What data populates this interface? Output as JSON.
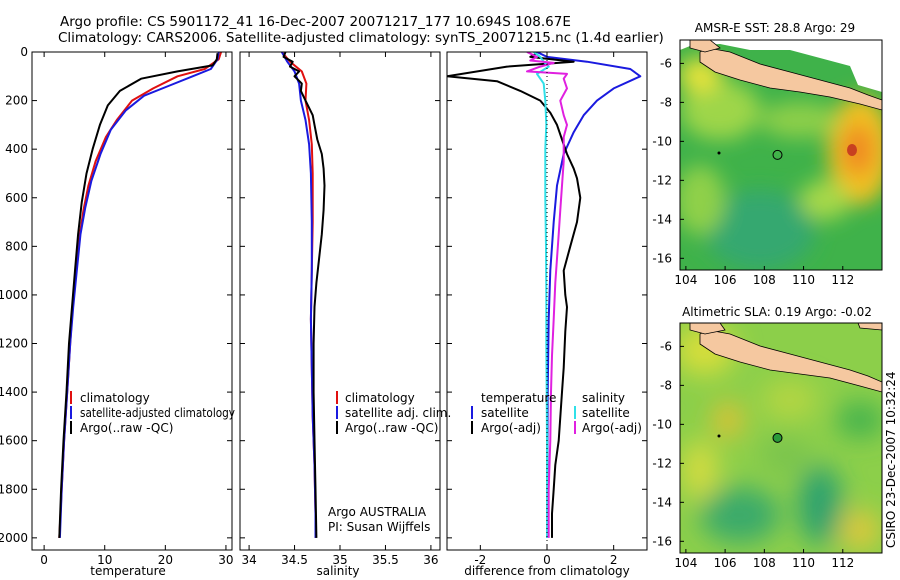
{
  "header": {
    "line1": "Argo profile: CS 5901172_41 16-Dec-2007 20071217_177 10.694S 108.67E",
    "line2": "Climatology: CARS2006. Satellite-adjusted climatology: synTS_20071215.nc (1.4d earlier)"
  },
  "footer_stamp": "CSIRO 23-Dec-2007 10:32:24",
  "colors": {
    "climatology": "#e01010",
    "satellite": "#1a1adf",
    "argo": "#000000",
    "sat_diff": "#30e0e8",
    "argo_diff_sal": "#e020e0",
    "land": "#f5c8a0"
  },
  "chart_data": [
    {
      "type": "line",
      "id": "temperature",
      "xlabel": "temperature",
      "ylabel": "",
      "xlim": [
        -2,
        31
      ],
      "ylim": [
        2050,
        0
      ],
      "y_reversed": true,
      "xticks": [
        0,
        10,
        20,
        30
      ],
      "xtick_labels": [
        "0",
        "10",
        "20",
        "30"
      ],
      "yticks": [
        0,
        200,
        400,
        600,
        800,
        1000,
        1200,
        1400,
        1600,
        1800,
        2000
      ],
      "ytick_labels": [
        "0",
        "200",
        "400",
        "600",
        "800",
        "1000",
        "1200",
        "1400",
        "1600",
        "1800",
        "2000"
      ],
      "legend": [
        "climatology",
        "satellite-adjusted climatology",
        "Argo(..raw -QC)"
      ],
      "series": [
        {
          "name": "climatology",
          "color": "#e01010",
          "points": [
            [
              29.2,
              0
            ],
            [
              28.8,
              30
            ],
            [
              26.5,
              70
            ],
            [
              22,
              100
            ],
            [
              18,
              150
            ],
            [
              14.5,
              200
            ],
            [
              12,
              280
            ],
            [
              10.2,
              350
            ],
            [
              8.5,
              450
            ],
            [
              7.3,
              550
            ],
            [
              6.5,
              650
            ],
            [
              5.9,
              750
            ],
            [
              5.3,
              900
            ],
            [
              4.7,
              1050
            ],
            [
              4.3,
              1200
            ],
            [
              3.8,
              1400
            ],
            [
              3.3,
              1600
            ],
            [
              2.9,
              1800
            ],
            [
              2.5,
              2000
            ]
          ]
        },
        {
          "name": "satellite-adjusted climatology",
          "color": "#1a1adf",
          "points": [
            [
              28.8,
              0
            ],
            [
              28.6,
              30
            ],
            [
              27.5,
              70
            ],
            [
              24.5,
              100
            ],
            [
              20.5,
              140
            ],
            [
              16.5,
              180
            ],
            [
              13.5,
              240
            ],
            [
              11,
              320
            ],
            [
              9.3,
              420
            ],
            [
              7.8,
              530
            ],
            [
              6.8,
              640
            ],
            [
              6,
              750
            ],
            [
              5.4,
              900
            ],
            [
              4.8,
              1050
            ],
            [
              4.3,
              1200
            ],
            [
              3.8,
              1400
            ],
            [
              3.3,
              1600
            ],
            [
              2.9,
              1800
            ],
            [
              2.6,
              2000
            ]
          ]
        },
        {
          "name": "Argo(..raw -QC)",
          "color": "#000000",
          "points": [
            [
              28.6,
              5
            ],
            [
              28.5,
              30
            ],
            [
              27.8,
              55
            ],
            [
              22,
              80
            ],
            [
              16,
              110
            ],
            [
              12.5,
              160
            ],
            [
              10.5,
              220
            ],
            [
              9.2,
              300
            ],
            [
              8,
              400
            ],
            [
              7,
              500
            ],
            [
              6.2,
              620
            ],
            [
              5.6,
              750
            ],
            [
              5.1,
              900
            ],
            [
              4.6,
              1050
            ],
            [
              4.1,
              1200
            ],
            [
              3.7,
              1400
            ],
            [
              3.2,
              1600
            ],
            [
              2.8,
              1800
            ],
            [
              2.5,
              2000
            ]
          ]
        }
      ]
    },
    {
      "type": "line",
      "id": "salinity",
      "xlabel": "salinity",
      "ylabel": "",
      "xlim": [
        33.9,
        36.1
      ],
      "ylim": [
        2050,
        0
      ],
      "y_reversed": true,
      "xticks": [
        34,
        34.5,
        35,
        35.5,
        36
      ],
      "xtick_labels": [
        "34",
        "34.5",
        "35",
        "35.5",
        "36"
      ],
      "legend": [
        "climatology",
        "satellite adj. clim.",
        "Argo(..raw -QC)"
      ],
      "annotations": [
        "Argo AUSTRALIA",
        "PI: Susan Wijffels"
      ],
      "series": [
        {
          "name": "climatology",
          "color": "#e01010",
          "points": [
            [
              34.36,
              0
            ],
            [
              34.45,
              40
            ],
            [
              34.58,
              80
            ],
            [
              34.63,
              130
            ],
            [
              34.62,
              200
            ],
            [
              34.66,
              280
            ],
            [
              34.69,
              380
            ],
            [
              34.7,
              500
            ],
            [
              34.7,
              700
            ],
            [
              34.69,
              900
            ],
            [
              34.68,
              1100
            ],
            [
              34.69,
              1300
            ],
            [
              34.7,
              1500
            ],
            [
              34.72,
              1700
            ],
            [
              34.73,
              1900
            ],
            [
              34.73,
              2000
            ]
          ]
        },
        {
          "name": "satellite adj. clim.",
          "color": "#1a1adf",
          "points": [
            [
              34.36,
              0
            ],
            [
              34.42,
              40
            ],
            [
              34.5,
              80
            ],
            [
              34.55,
              130
            ],
            [
              34.57,
              200
            ],
            [
              34.62,
              280
            ],
            [
              34.66,
              380
            ],
            [
              34.68,
              500
            ],
            [
              34.69,
              700
            ],
            [
              34.69,
              900
            ],
            [
              34.68,
              1100
            ],
            [
              34.69,
              1300
            ],
            [
              34.7,
              1500
            ],
            [
              34.72,
              1700
            ],
            [
              34.73,
              1900
            ],
            [
              34.73,
              2000
            ]
          ]
        },
        {
          "name": "Argo(..raw -QC)",
          "color": "#000000",
          "points": [
            [
              34.4,
              0
            ],
            [
              34.38,
              20
            ],
            [
              34.48,
              40
            ],
            [
              34.45,
              60
            ],
            [
              34.55,
              80
            ],
            [
              34.5,
              100
            ],
            [
              34.58,
              130
            ],
            [
              34.57,
              160
            ],
            [
              34.62,
              200
            ],
            [
              34.7,
              260
            ],
            [
              34.72,
              300
            ],
            [
              34.75,
              360
            ],
            [
              34.8,
              420
            ],
            [
              34.82,
              480
            ],
            [
              34.83,
              550
            ],
            [
              34.82,
              650
            ],
            [
              34.8,
              750
            ],
            [
              34.77,
              850
            ],
            [
              34.74,
              950
            ],
            [
              34.72,
              1050
            ],
            [
              34.71,
              1200
            ],
            [
              34.71,
              1400
            ],
            [
              34.72,
              1600
            ],
            [
              34.73,
              1800
            ],
            [
              34.74,
              2000
            ]
          ]
        }
      ]
    },
    {
      "type": "line",
      "id": "difference",
      "xlabel": "difference from climatology",
      "ylabel": "",
      "xlim": [
        -3,
        3
      ],
      "ylim": [
        2050,
        0
      ],
      "y_reversed": true,
      "xticks": [
        -2,
        0,
        2
      ],
      "xtick_labels": [
        "-2",
        "0",
        "2"
      ],
      "legend": [
        "temperature",
        "satellite",
        "Argo(-adj)",
        "salinity",
        "satellite",
        "Argo(-adj)"
      ],
      "series": [
        {
          "name": "temperature satellite",
          "color": "#1a1adf",
          "points": [
            [
              -0.3,
              0
            ],
            [
              0,
              20
            ],
            [
              1.2,
              40
            ],
            [
              2.5,
              70
            ],
            [
              2.8,
              100
            ],
            [
              2,
              150
            ],
            [
              1.5,
              200
            ],
            [
              1.1,
              260
            ],
            [
              0.8,
              330
            ],
            [
              0.5,
              420
            ],
            [
              0.3,
              550
            ],
            [
              0.2,
              700
            ],
            [
              0.1,
              900
            ],
            [
              0.05,
              1100
            ],
            [
              0.02,
              1400
            ],
            [
              0.01,
              1700
            ],
            [
              0,
              2000
            ]
          ]
        },
        {
          "name": "temperature Argo(-adj)",
          "color": "#000000",
          "points": [
            [
              -0.3,
              5
            ],
            [
              -0.5,
              20
            ],
            [
              0.8,
              40
            ],
            [
              -1.2,
              60
            ],
            [
              -3,
              100
            ],
            [
              -1.5,
              120
            ],
            [
              -0.8,
              160
            ],
            [
              -0.2,
              200
            ],
            [
              0.1,
              250
            ],
            [
              0.3,
              300
            ],
            [
              0.45,
              360
            ],
            [
              0.6,
              420
            ],
            [
              0.8,
              480
            ],
            [
              0.9,
              520
            ],
            [
              1,
              600
            ],
            [
              0.9,
              700
            ],
            [
              0.7,
              800
            ],
            [
              0.5,
              900
            ],
            [
              0.55,
              1000
            ],
            [
              0.6,
              1050
            ],
            [
              0.55,
              1150
            ],
            [
              0.5,
              1300
            ],
            [
              0.45,
              1400
            ],
            [
              0.35,
              1600
            ],
            [
              0.25,
              1700
            ],
            [
              0.2,
              1800
            ],
            [
              0.15,
              1900
            ],
            [
              0.15,
              2000
            ]
          ]
        },
        {
          "name": "salinity satellite",
          "color": "#30e0e8",
          "points": [
            [
              -0.4,
              0
            ],
            [
              -0.2,
              20
            ],
            [
              -0.1,
              40
            ],
            [
              0.05,
              60
            ],
            [
              -0.3,
              90
            ],
            [
              -0.1,
              130
            ],
            [
              -0.05,
              200
            ],
            [
              -0.02,
              300
            ],
            [
              -0.05,
              400
            ],
            [
              -0.05,
              600
            ],
            [
              -0.03,
              800
            ],
            [
              -0.02,
              1000
            ],
            [
              -0.02,
              1200
            ],
            [
              -0.01,
              1400
            ],
            [
              0,
              1600
            ],
            [
              0,
              1800
            ],
            [
              0,
              2000
            ]
          ]
        },
        {
          "name": "salinity Argo(-adj)",
          "color": "#e020e0",
          "points": [
            [
              -0.6,
              0
            ],
            [
              -0.3,
              20
            ],
            [
              -0.5,
              35
            ],
            [
              0.2,
              45
            ],
            [
              -0.2,
              60
            ],
            [
              -0.6,
              80
            ],
            [
              0.6,
              90
            ],
            [
              0.5,
              110
            ],
            [
              0.6,
              150
            ],
            [
              0.4,
              200
            ],
            [
              0.5,
              260
            ],
            [
              0.6,
              300
            ],
            [
              0.5,
              350
            ],
            [
              0.5,
              450
            ],
            [
              0.45,
              550
            ],
            [
              0.4,
              650
            ],
            [
              0.35,
              750
            ],
            [
              0.3,
              850
            ],
            [
              0.25,
              950
            ],
            [
              0.2,
              1100
            ],
            [
              0.15,
              1250
            ],
            [
              0.12,
              1400
            ],
            [
              0.1,
              1600
            ],
            [
              0.05,
              1800
            ],
            [
              0.05,
              2000
            ]
          ]
        }
      ]
    },
    {
      "type": "heatmap",
      "id": "sst-map",
      "title": "AMSR-E SST: 28.8 Argo: 29",
      "xlim": [
        103.7,
        114
      ],
      "ylim": [
        -16.6,
        -4.8
      ],
      "xticks": [
        104,
        106,
        108,
        110,
        112
      ],
      "xtick_labels": [
        "104",
        "106",
        "108",
        "110",
        "112"
      ],
      "yticks": [
        -6,
        -8,
        -10,
        -12,
        -14,
        -16
      ],
      "ytick_labels": [
        "-6",
        "-8",
        "-10",
        "-12",
        "-14",
        "-16"
      ],
      "argo_float": [
        108.67,
        -10.694
      ]
    },
    {
      "type": "heatmap",
      "id": "sla-map",
      "title": "Altimetric SLA: 0.19 Argo: -0.02",
      "xlim": [
        103.7,
        114
      ],
      "ylim": [
        -16.6,
        -4.8
      ],
      "xticks": [
        104,
        106,
        108,
        110,
        112
      ],
      "xtick_labels": [
        "104",
        "106",
        "108",
        "110",
        "112"
      ],
      "yticks": [
        -6,
        -8,
        -10,
        -12,
        -14,
        -16
      ],
      "ytick_labels": [
        "-6",
        "-8",
        "-10",
        "-12",
        "-14",
        "-16"
      ],
      "argo_float": [
        108.67,
        -10.694
      ]
    }
  ]
}
